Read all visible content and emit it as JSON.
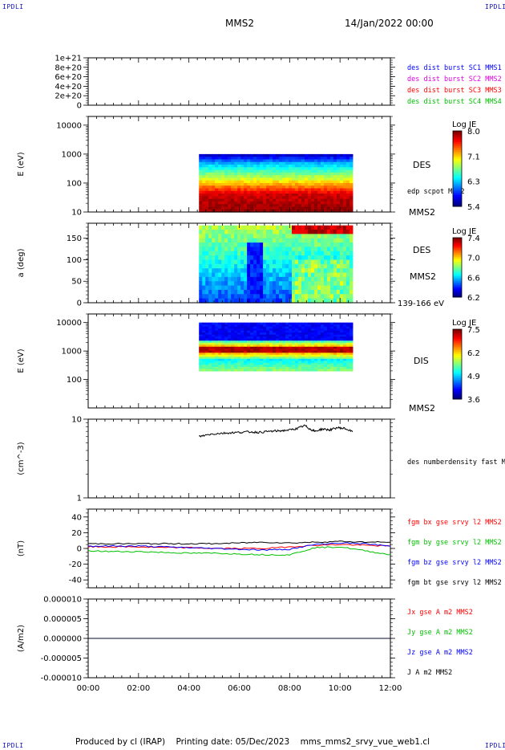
{
  "header": {
    "corner_tl": "IPDLI",
    "corner_tr": "IPDLI",
    "corner_bl": "IPDLI",
    "corner_br": "IPDLI",
    "spacecraft": "MMS2",
    "date": "14/Jan/2022 00:00"
  },
  "footer": {
    "producer": "Produced by cl (IRAP)",
    "printing": "Printing date: 05/Dec/2023",
    "filename": "mms_mms2_srvy_vue_web1.cl"
  },
  "colors": {
    "blue": "#0000ff",
    "magenta": "#e000e0",
    "red": "#ff0000",
    "green": "#00c000",
    "black": "#000000"
  },
  "x_axis": {
    "tick_labels": [
      "00:00",
      "02:00",
      "04:00",
      "06:00",
      "08:00",
      "10:00",
      "12:00"
    ],
    "range_hours": [
      0,
      12
    ],
    "data_span_hours": [
      4.4,
      10.5
    ]
  },
  "chart_data": [
    {
      "panel": "dist-burst",
      "type": "line",
      "y_ticks": [
        "1e+21",
        "8e+20",
        "6e+20",
        "4e+20",
        "2e+20",
        "0"
      ],
      "ylim": [
        0,
        1e+21
      ],
      "series": [
        {
          "name": "des dist burst SC1 MMS1",
          "color": "blue",
          "values": []
        },
        {
          "name": "des dist burst SC2 MMS2",
          "color": "magenta",
          "values": []
        },
        {
          "name": "des dist burst SC3 MMS3",
          "color": "red",
          "values": []
        },
        {
          "name": "des dist burst SC4 MMS4",
          "color": "green",
          "values": []
        }
      ],
      "reference_line": 0
    },
    {
      "panel": "des-energy-spectrogram",
      "type": "heatmap",
      "ylabel": "E (eV)",
      "y_ticks": [
        "10000",
        "1000",
        "100",
        "10"
      ],
      "y_scale": "log",
      "ylim": [
        10,
        20000
      ],
      "data_ylim": [
        10,
        1000
      ],
      "right_labels": [
        "DES",
        "edp scpot MMS2",
        "MMS2"
      ],
      "colorbar": {
        "title": "Log JE",
        "ticks": [
          "8.0",
          "7.1",
          "6.3",
          "5.4"
        ],
        "range": [
          5.4,
          8.0
        ]
      }
    },
    {
      "panel": "des-pitch-angle",
      "type": "heatmap",
      "ylabel": "a (deg)",
      "y_ticks": [
        "150",
        "100",
        "50",
        "0"
      ],
      "ylim": [
        0,
        185
      ],
      "right_labels": [
        "DES",
        "MMS2",
        "139-166 eV"
      ],
      "colorbar": {
        "title": "Log JE",
        "ticks": [
          "7.4",
          "7.0",
          "6.6",
          "6.2"
        ],
        "range": [
          6.2,
          7.4
        ]
      }
    },
    {
      "panel": "dis-energy-spectrogram",
      "type": "heatmap",
      "ylabel": "E (eV)",
      "y_ticks": [
        "10000",
        "1000",
        "100"
      ],
      "y_scale": "log",
      "ylim": [
        10,
        20000
      ],
      "data_ylim": [
        200,
        10000
      ],
      "right_labels": [
        "DIS",
        "MMS2"
      ],
      "colorbar": {
        "title": "Log JE",
        "ticks": [
          "7.5",
          "6.2",
          "4.9",
          "3.6"
        ],
        "range": [
          3.6,
          7.5
        ]
      }
    },
    {
      "panel": "number-density",
      "type": "line",
      "ylabel": "(cm^-3)",
      "y_ticks": [
        "10",
        "1"
      ],
      "y_scale": "log",
      "ylim": [
        1,
        10
      ],
      "series": [
        {
          "name": "des numberdensity fast M",
          "color": "black",
          "x": [
            4.4,
            4.8,
            5.2,
            5.6,
            6.0,
            6.4,
            6.8,
            7.2,
            7.6,
            8.0,
            8.3,
            8.6,
            8.8,
            9.0,
            9.3,
            9.6,
            9.9,
            10.2,
            10.5
          ],
          "values": [
            6.0,
            6.4,
            6.6,
            6.7,
            6.8,
            6.9,
            6.8,
            7.0,
            7.1,
            7.3,
            7.6,
            8.3,
            7.5,
            7.0,
            7.5,
            7.3,
            7.8,
            7.6,
            6.9
          ]
        }
      ]
    },
    {
      "panel": "fgm-b",
      "type": "line",
      "ylabel": "(nT)",
      "y_ticks": [
        "40",
        "20",
        "0",
        "-20",
        "-40"
      ],
      "ylim": [
        -50,
        50
      ],
      "series": [
        {
          "name": "fgm bx gse srvy l2 MMS2",
          "color": "red",
          "x": [
            0,
            1,
            2,
            3,
            4,
            5,
            6,
            7,
            8,
            9,
            10,
            11,
            12
          ],
          "values": [
            2,
            2,
            2,
            1,
            1,
            0,
            0,
            0,
            2,
            4,
            5,
            4,
            3
          ]
        },
        {
          "name": "fgm by gse srvy l2 MMS2",
          "color": "green",
          "x": [
            0,
            1,
            2,
            3,
            4,
            5,
            6,
            7,
            8,
            9,
            10,
            11,
            12
          ],
          "values": [
            -3,
            -4,
            -4,
            -5,
            -6,
            -6,
            -7,
            -8,
            -8,
            1,
            2,
            -3,
            -8
          ]
        },
        {
          "name": "fgm bz gse srvy l2 MMS2",
          "color": "blue",
          "x": [
            0,
            1,
            2,
            3,
            4,
            5,
            6,
            7,
            8,
            9,
            10,
            11,
            12
          ],
          "values": [
            3,
            3,
            3,
            2,
            1,
            0,
            -1,
            -2,
            -1,
            5,
            7,
            6,
            3
          ]
        },
        {
          "name": "fgm bt gse srvy l2 MMS2",
          "color": "black",
          "x": [
            0,
            1,
            2,
            3,
            4,
            5,
            6,
            7,
            8,
            9,
            10,
            11,
            12
          ],
          "values": [
            6,
            6,
            6,
            6,
            6,
            6,
            7,
            8,
            7,
            8,
            9,
            8,
            8
          ]
        }
      ]
    },
    {
      "panel": "current-density",
      "type": "line",
      "ylabel": "(A/m2)",
      "y_ticks": [
        "0.000010",
        "0.000005",
        "0.000000",
        "-0.000005",
        "-0.000010"
      ],
      "ylim": [
        -1e-05,
        1e-05
      ],
      "series": [
        {
          "name": "Jx gse A m2 MMS2",
          "color": "red",
          "x": [
            0,
            12
          ],
          "values": [
            0,
            0
          ]
        },
        {
          "name": "Jy gse A m2 MMS2",
          "color": "green",
          "x": [
            0,
            12
          ],
          "values": [
            0,
            0
          ]
        },
        {
          "name": "Jz gse A m2 MMS2",
          "color": "blue",
          "x": [
            0,
            12
          ],
          "values": [
            0,
            0
          ]
        },
        {
          "name": "J A m2 MMS2",
          "color": "black",
          "x": [
            0,
            12
          ],
          "values": [
            0,
            0
          ]
        }
      ]
    }
  ]
}
